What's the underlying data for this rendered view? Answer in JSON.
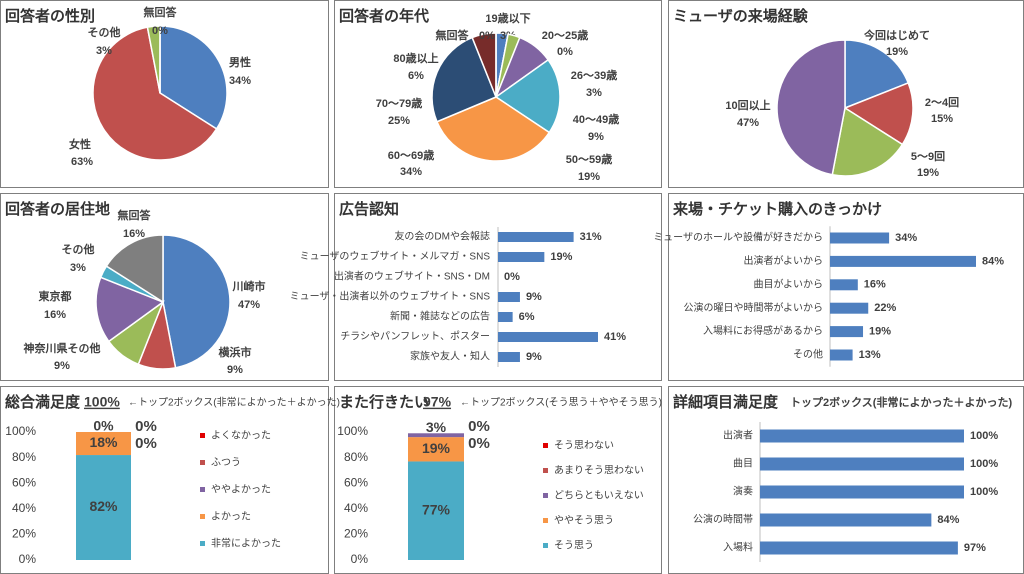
{
  "chart_data": [
    {
      "type": "pie",
      "title": "回答者の性別",
      "categories": [
        "男性",
        "女性",
        "その他",
        "無回答"
      ],
      "values": [
        34,
        63,
        3,
        0
      ],
      "value_labels": [
        "34%",
        "63%",
        "3%",
        "0%"
      ],
      "colors": [
        "#4e7fbf",
        "#c0504d",
        "#9bbb59",
        "#7f7f7f"
      ]
    },
    {
      "type": "pie",
      "title": "回答者の年代",
      "categories": [
        "19歳以下",
        "20～25歳",
        "26～39歳",
        "40～49歳",
        "50～59歳",
        "60～69歳",
        "70～79歳",
        "80歳以上",
        "無回答"
      ],
      "values": [
        3,
        0,
        3,
        9,
        19,
        34,
        25,
        6,
        0
      ],
      "value_labels": [
        "3%",
        "0%",
        "3%",
        "9%",
        "19%",
        "34%",
        "25%",
        "6%",
        "0%"
      ],
      "colors": [
        "#4e7fbf",
        "#c0504d",
        "#9bbb59",
        "#8064a2",
        "#4bacc6",
        "#f79646",
        "#2c4d75",
        "#772c2a",
        "#7f7f7f"
      ]
    },
    {
      "type": "pie",
      "title": "ミューザの来場経験",
      "categories": [
        "今回はじめて",
        "2～4回",
        "5～9回",
        "10回以上"
      ],
      "values": [
        19,
        15,
        19,
        47
      ],
      "value_labels": [
        "19%",
        "15%",
        "19%",
        "47%"
      ],
      "colors": [
        "#4e7fbf",
        "#c0504d",
        "#9bbb59",
        "#8064a2"
      ]
    },
    {
      "type": "pie",
      "title": "回答者の居住地",
      "categories": [
        "川崎市",
        "横浜市",
        "神奈川県その他",
        "東京都",
        "その他",
        "無回答"
      ],
      "values": [
        47,
        9,
        9,
        16,
        3,
        16
      ],
      "value_labels": [
        "47%",
        "9%",
        "9%",
        "16%",
        "3%",
        "16%"
      ],
      "colors": [
        "#4e7fbf",
        "#c0504d",
        "#9bbb59",
        "#8064a2",
        "#4bacc6",
        "#7f7f7f"
      ]
    },
    {
      "type": "bar",
      "title": "広告認知",
      "categories": [
        "友の会のDMや会報誌",
        "ミューザのウェブサイト・メルマガ・SNS",
        "出演者のウェブサイト・SNS・DM",
        "ミューザ・出演者以外のウェブサイト・SNS",
        "新聞・雑誌などの広告",
        "チラシやパンフレット、ポスター",
        "家族や友人・知人"
      ],
      "values": [
        31,
        19,
        0,
        9,
        6,
        41,
        9
      ],
      "value_labels": [
        "31%",
        "19%",
        "0%",
        "9%",
        "6%",
        "41%",
        "9%"
      ],
      "color": "#4e7fbf"
    },
    {
      "type": "bar",
      "title": "来場・チケット購入のきっかけ",
      "categories": [
        "ミューザのホールや設備が好きだから",
        "出演者がよいから",
        "曲目がよいから",
        "公演の曜日や時間帯がよいから",
        "入場料にお得感があるから",
        "その他"
      ],
      "values": [
        34,
        84,
        16,
        22,
        19,
        13
      ],
      "value_labels": [
        "34%",
        "84%",
        "16%",
        "22%",
        "19%",
        "13%"
      ],
      "color": "#4e7fbf"
    },
    {
      "type": "stacked_bar",
      "title": "総合満足度",
      "top2": "100%",
      "annotation": "←トップ2ボックス(非常によかった＋よかった)",
      "ylim": [
        0,
        100
      ],
      "yticks": [
        {
          "value": 0,
          "label": "0%"
        },
        {
          "value": 20,
          "label": "20%"
        },
        {
          "value": 40,
          "label": "40%"
        },
        {
          "value": 60,
          "label": "60%"
        },
        {
          "value": 80,
          "label": "80%"
        },
        {
          "value": 100,
          "label": "100%"
        }
      ],
      "series": [
        {
          "name": "非常によかった",
          "color": "#4bacc6",
          "values": [
            82
          ],
          "value_labels": [
            "82%"
          ]
        },
        {
          "name": "よかった",
          "color": "#f79646",
          "values": [
            18
          ],
          "value_labels": [
            "18%"
          ]
        },
        {
          "name": "ややよかった",
          "color": "#8064a2",
          "values": [
            0
          ],
          "value_labels": [
            "0%"
          ]
        },
        {
          "name": "ふつう",
          "color": "#c0504d",
          "values": [
            0
          ],
          "value_labels": [
            "0%"
          ]
        },
        {
          "name": "よくなかった",
          "color": "#e00000",
          "values": [
            0
          ],
          "value_labels": [
            "0%"
          ]
        }
      ]
    },
    {
      "type": "stacked_bar",
      "title": "また行きたい",
      "top2": "97%",
      "annotation": "←トップ2ボックス(そう思う＋ややそう思う)",
      "ylim": [
        0,
        100
      ],
      "yticks": [
        {
          "value": 0,
          "label": "0%"
        },
        {
          "value": 20,
          "label": "20%"
        },
        {
          "value": 40,
          "label": "40%"
        },
        {
          "value": 60,
          "label": "60%"
        },
        {
          "value": 80,
          "label": "80%"
        },
        {
          "value": 100,
          "label": "100%"
        }
      ],
      "series": [
        {
          "name": "そう思う",
          "color": "#4bacc6",
          "values": [
            77
          ],
          "value_labels": [
            "77%"
          ]
        },
        {
          "name": "ややそう思う",
          "color": "#f79646",
          "values": [
            19
          ],
          "value_labels": [
            "19%"
          ]
        },
        {
          "name": "どちらともいえない",
          "color": "#8064a2",
          "values": [
            3
          ],
          "value_labels": [
            "3%"
          ]
        },
        {
          "name": "あまりそう思わない",
          "color": "#c0504d",
          "values": [
            0
          ],
          "value_labels": [
            "0%"
          ]
        },
        {
          "name": "そう思わない",
          "color": "#e00000",
          "values": [
            0
          ],
          "value_labels": [
            "0%"
          ]
        }
      ]
    },
    {
      "type": "bar",
      "title": "詳細項目満足度",
      "subtitle": "トップ2ボックス(非常によかった＋よかった)",
      "categories": [
        "出演者",
        "曲目",
        "演奏",
        "公演の時間帯",
        "入場料"
      ],
      "values": [
        100,
        100,
        100,
        84,
        97
      ],
      "value_labels": [
        "100%",
        "100%",
        "100%",
        "84%",
        "97%"
      ],
      "color": "#4e7fbf"
    }
  ]
}
